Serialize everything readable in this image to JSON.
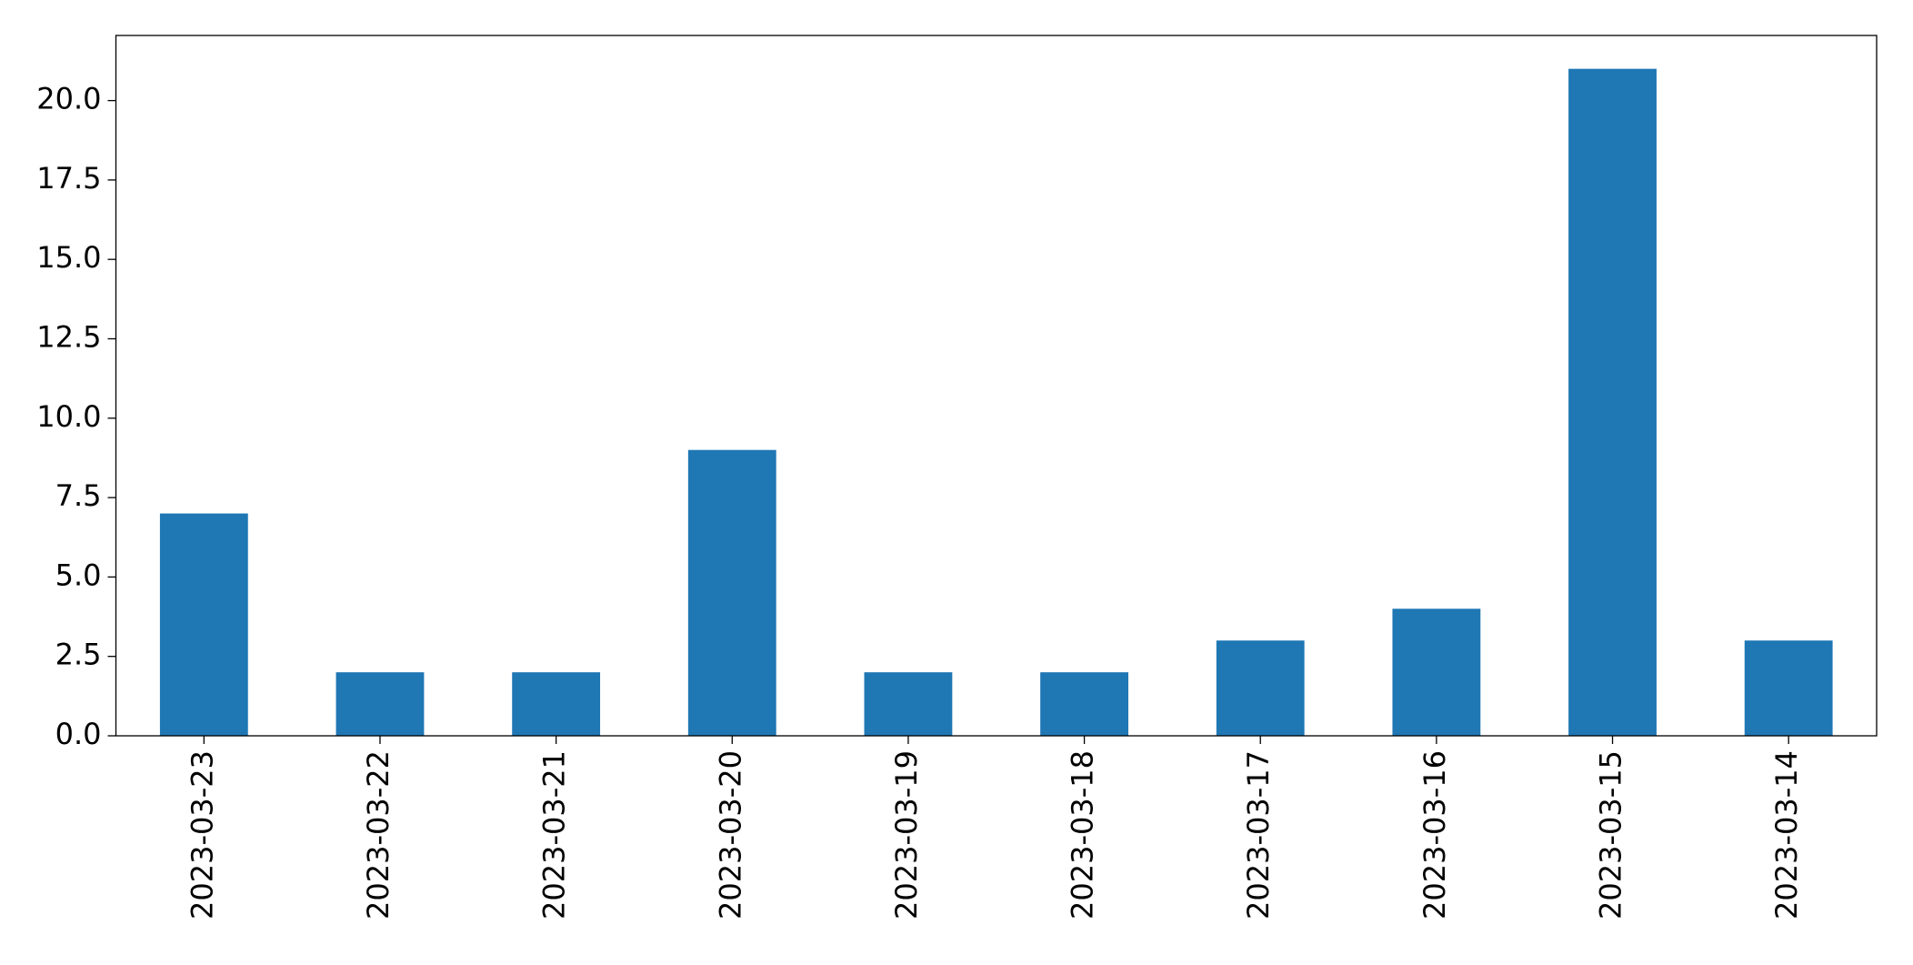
{
  "chart_data": {
    "type": "bar",
    "categories": [
      "2023-03-23",
      "2023-03-22",
      "2023-03-21",
      "2023-03-20",
      "2023-03-19",
      "2023-03-18",
      "2023-03-17",
      "2023-03-16",
      "2023-03-15",
      "2023-03-14"
    ],
    "values": [
      7,
      2,
      2,
      9,
      2,
      2,
      3,
      4,
      21,
      3
    ],
    "color": "#1f77b4",
    "ylim": [
      0,
      22.05
    ],
    "yticks": [
      {
        "value": 0,
        "label": "0.0"
      },
      {
        "value": 2.5,
        "label": "2.5"
      },
      {
        "value": 5,
        "label": "5.0"
      },
      {
        "value": 7.5,
        "label": "7.5"
      },
      {
        "value": 10,
        "label": "10.0"
      },
      {
        "value": 12.5,
        "label": "12.5"
      },
      {
        "value": 15,
        "label": "15.0"
      },
      {
        "value": 17.5,
        "label": "17.5"
      },
      {
        "value": 20,
        "label": "20.0"
      }
    ],
    "grid": false
  }
}
